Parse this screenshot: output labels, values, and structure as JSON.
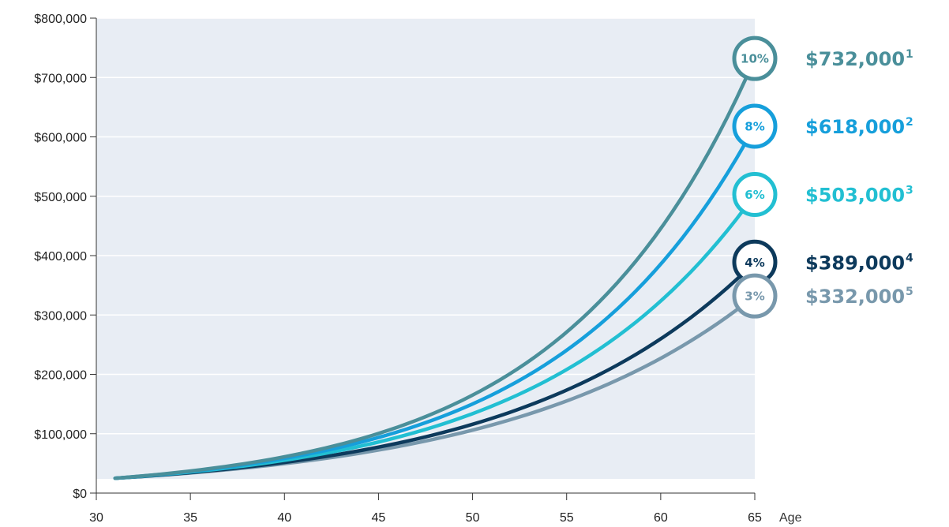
{
  "chart_data": {
    "type": "line",
    "xlabel": "Age",
    "ylabel": "",
    "title": "",
    "xlim": [
      30,
      65
    ],
    "ylim": [
      0,
      800000
    ],
    "x_ticks": [
      30,
      35,
      40,
      45,
      50,
      55,
      60,
      65
    ],
    "x_tick_labels": [
      "30",
      "35",
      "40",
      "45",
      "50",
      "55",
      "60",
      "65"
    ],
    "y_ticks": [
      0,
      100000,
      200000,
      300000,
      400000,
      500000,
      600000,
      700000,
      800000
    ],
    "y_tick_labels": [
      "$0",
      "$100,000",
      "$200,000",
      "$300,000",
      "$400,000",
      "$500,000",
      "$600,000",
      "$700,000",
      "$800,000"
    ],
    "grid": true,
    "background_color": "#e8edf4",
    "start": {
      "x": 31,
      "y": 25000
    },
    "end_x": 65,
    "series": [
      {
        "name": "10%",
        "rate": 0.1,
        "end_value": 732000,
        "end_label": "$732,000",
        "footnote": "1",
        "color": "#4a8f9a"
      },
      {
        "name": "8%",
        "rate": 0.08,
        "end_value": 618000,
        "end_label": "$618,000",
        "footnote": "2",
        "color": "#169fdb"
      },
      {
        "name": "6%",
        "rate": 0.06,
        "end_value": 503000,
        "end_label": "$503,000",
        "footnote": "3",
        "color": "#22bfd2"
      },
      {
        "name": "4%",
        "rate": 0.04,
        "end_value": 389000,
        "end_label": "$389,000",
        "footnote": "4",
        "color": "#0d3a5c"
      },
      {
        "name": "3%",
        "rate": 0.03,
        "end_value": 332000,
        "end_label": "$332,000",
        "footnote": "5",
        "color": "#7898ac"
      }
    ]
  }
}
